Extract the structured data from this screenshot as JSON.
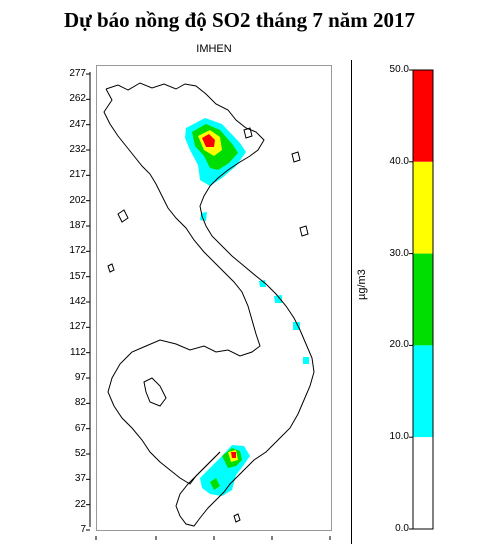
{
  "title": "Dự báo nồng độ SO2 tháng 7 năm 2017",
  "subtitle": "IMHEN",
  "map": {
    "y_axis_ticks": [
      "277",
      "262",
      "247",
      "232",
      "217",
      "202",
      "187",
      "172",
      "157",
      "142",
      "127",
      "112",
      "97",
      "82",
      "67",
      "52",
      "37",
      "22",
      "7"
    ]
  },
  "colorbar": {
    "unit_label": "µg/m3",
    "ticks": [
      "50.0",
      "40.0",
      "30.0",
      "20.0",
      "10.0",
      "0.0"
    ],
    "bands": [
      {
        "from": 40,
        "to": 50,
        "color": "#ff0000"
      },
      {
        "from": 30,
        "to": 40,
        "color": "#ffff00"
      },
      {
        "from": 20,
        "to": 30,
        "color": "#00dd00"
      },
      {
        "from": 10,
        "to": 20,
        "color": "#00ffff"
      },
      {
        "from": 0,
        "to": 10,
        "color": "#ffffff"
      }
    ]
  }
}
